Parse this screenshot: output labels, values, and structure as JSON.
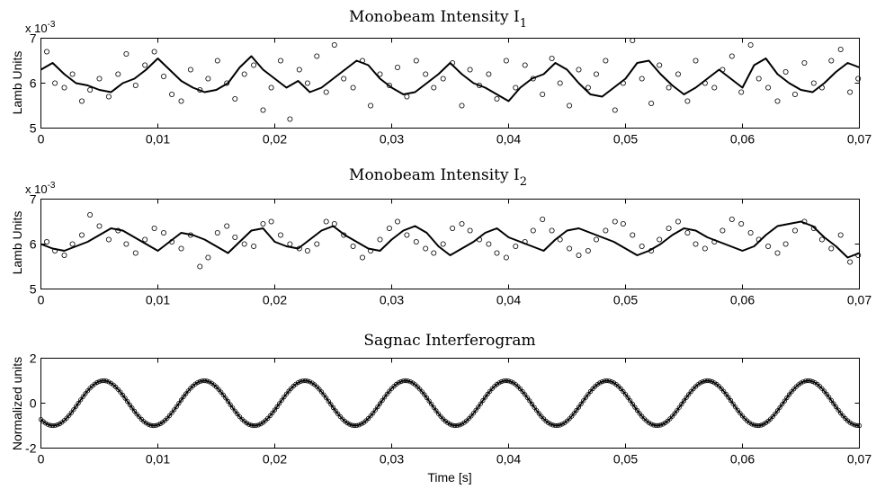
{
  "chart_data": [
    {
      "type": "scatter",
      "title_main": "Monobeam Intensity I",
      "title_sub": "1",
      "xlabel": "",
      "ylabel": "Lamb Units",
      "exponent_base": "x 10",
      "exponent_power": "-3",
      "xlim": [
        0,
        0.07
      ],
      "ylim": [
        5,
        7
      ],
      "x_ticks": [
        0,
        0.01,
        0.02,
        0.03,
        0.04,
        0.05,
        0.06,
        0.07
      ],
      "x_tick_labels": [
        "0",
        "0,01",
        "0,02",
        "0,03",
        "0,04",
        "0,05",
        "0,06",
        "0,07"
      ],
      "y_ticks": [
        5,
        6,
        7
      ],
      "y_tick_labels": [
        "5",
        "6",
        "7"
      ],
      "series": [
        {
          "style": "line",
          "x": [
            0,
            0.001,
            0.002,
            0.003,
            0.004,
            0.005,
            0.006,
            0.007,
            0.008,
            0.009,
            0.01,
            0.011,
            0.012,
            0.013,
            0.014,
            0.015,
            0.016,
            0.017,
            0.018,
            0.019,
            0.02,
            0.021,
            0.022,
            0.023,
            0.024,
            0.025,
            0.026,
            0.027,
            0.028,
            0.029,
            0.03,
            0.031,
            0.032,
            0.033,
            0.034,
            0.035,
            0.036,
            0.037,
            0.038,
            0.039,
            0.04,
            0.041,
            0.042,
            0.043,
            0.044,
            0.045,
            0.046,
            0.047,
            0.048,
            0.049,
            0.05,
            0.051,
            0.052,
            0.053,
            0.054,
            0.055,
            0.056,
            0.057,
            0.058,
            0.059,
            0.06,
            0.061,
            0.062,
            0.063,
            0.064,
            0.065,
            0.066,
            0.067,
            0.068,
            0.069,
            0.07
          ],
          "values": [
            6.3,
            6.45,
            6.2,
            6.0,
            5.95,
            5.85,
            5.8,
            6.0,
            6.1,
            6.3,
            6.55,
            6.3,
            6.05,
            5.9,
            5.8,
            5.85,
            6.0,
            6.35,
            6.6,
            6.3,
            6.1,
            5.9,
            6.05,
            5.8,
            5.9,
            6.1,
            6.3,
            6.5,
            6.4,
            6.1,
            5.9,
            5.75,
            5.8,
            6.0,
            6.2,
            6.45,
            6.2,
            6.0,
            5.9,
            5.75,
            5.6,
            5.9,
            6.1,
            6.2,
            6.45,
            6.3,
            6.0,
            5.75,
            5.7,
            5.9,
            6.1,
            6.45,
            6.5,
            6.2,
            5.95,
            5.75,
            5.9,
            6.1,
            6.3,
            6.1,
            5.9,
            6.4,
            6.55,
            6.2,
            6.0,
            5.85,
            5.8,
            6.0,
            6.25,
            6.45,
            6.35
          ]
        },
        {
          "style": "markers",
          "x": [
            0.0005,
            0.0012,
            0.002,
            0.0027,
            0.0035,
            0.0042,
            0.005,
            0.0058,
            0.0066,
            0.0073,
            0.0081,
            0.0089,
            0.0097,
            0.0105,
            0.0112,
            0.012,
            0.0128,
            0.0136,
            0.0143,
            0.0151,
            0.0159,
            0.0166,
            0.0174,
            0.0182,
            0.019,
            0.0197,
            0.0205,
            0.0213,
            0.0221,
            0.0228,
            0.0236,
            0.0244,
            0.0251,
            0.0259,
            0.0267,
            0.0275,
            0.0282,
            0.029,
            0.0298,
            0.0305,
            0.0313,
            0.0321,
            0.0329,
            0.0336,
            0.0344,
            0.0352,
            0.036,
            0.0367,
            0.0375,
            0.0383,
            0.039,
            0.0398,
            0.0406,
            0.0414,
            0.0421,
            0.0429,
            0.0437,
            0.0444,
            0.0452,
            0.046,
            0.0468,
            0.0475,
            0.0483,
            0.0491,
            0.0498,
            0.0506,
            0.0514,
            0.0522,
            0.0529,
            0.0537,
            0.0545,
            0.0553,
            0.056,
            0.0568,
            0.0576,
            0.0583,
            0.0591,
            0.0599,
            0.0607,
            0.0614,
            0.0622,
            0.063,
            0.0637,
            0.0645,
            0.0653,
            0.0661,
            0.0668,
            0.0676,
            0.0684,
            0.0692,
            0.0699
          ],
          "values": [
            6.7,
            6.0,
            5.9,
            6.2,
            5.6,
            5.85,
            6.1,
            5.7,
            6.2,
            6.65,
            5.95,
            6.4,
            6.7,
            6.15,
            5.75,
            5.6,
            6.3,
            5.85,
            6.1,
            6.5,
            6.0,
            5.65,
            6.2,
            6.4,
            5.4,
            5.9,
            6.5,
            5.2,
            6.3,
            6.0,
            6.6,
            5.8,
            6.85,
            6.1,
            5.9,
            6.5,
            5.5,
            6.2,
            5.95,
            6.35,
            5.7,
            6.5,
            6.2,
            5.9,
            6.1,
            6.45,
            5.5,
            6.3,
            5.95,
            6.2,
            5.65,
            6.5,
            5.9,
            6.4,
            6.1,
            5.75,
            6.55,
            6.0,
            5.5,
            6.3,
            5.9,
            6.2,
            6.5,
            5.4,
            6.0,
            6.95,
            6.1,
            5.55,
            6.4,
            5.9,
            6.2,
            5.6,
            6.5,
            6.0,
            5.9,
            6.3,
            6.6,
            5.8,
            6.85,
            6.1,
            5.9,
            5.6,
            6.25,
            5.75,
            6.45,
            6.0,
            5.9,
            6.5,
            6.75,
            5.8,
            6.1
          ]
        }
      ]
    },
    {
      "type": "scatter",
      "title_main": "Monobeam Intensity I",
      "title_sub": "2",
      "xlabel": "",
      "ylabel": "Lamb Units",
      "exponent_base": "x 10",
      "exponent_power": "-3",
      "xlim": [
        0,
        0.07
      ],
      "ylim": [
        5,
        7
      ],
      "x_ticks": [
        0,
        0.01,
        0.02,
        0.03,
        0.04,
        0.05,
        0.06,
        0.07
      ],
      "x_tick_labels": [
        "0",
        "0,01",
        "0,02",
        "0,03",
        "0,04",
        "0,05",
        "0,06",
        "0,07"
      ],
      "y_ticks": [
        5,
        6,
        7
      ],
      "y_tick_labels": [
        "5",
        "6",
        "7"
      ],
      "series": [
        {
          "style": "line",
          "x": [
            0,
            0.001,
            0.002,
            0.003,
            0.004,
            0.005,
            0.006,
            0.007,
            0.008,
            0.009,
            0.01,
            0.011,
            0.012,
            0.013,
            0.014,
            0.015,
            0.016,
            0.017,
            0.018,
            0.019,
            0.02,
            0.021,
            0.022,
            0.023,
            0.024,
            0.025,
            0.026,
            0.027,
            0.028,
            0.029,
            0.03,
            0.031,
            0.032,
            0.033,
            0.034,
            0.035,
            0.036,
            0.037,
            0.038,
            0.039,
            0.04,
            0.041,
            0.042,
            0.043,
            0.044,
            0.045,
            0.046,
            0.047,
            0.048,
            0.049,
            0.05,
            0.051,
            0.052,
            0.053,
            0.054,
            0.055,
            0.056,
            0.057,
            0.058,
            0.059,
            0.06,
            0.061,
            0.062,
            0.063,
            0.064,
            0.065,
            0.066,
            0.067,
            0.068,
            0.069,
            0.07
          ],
          "values": [
            6.0,
            5.9,
            5.85,
            5.95,
            6.05,
            6.2,
            6.35,
            6.3,
            6.15,
            6.0,
            5.85,
            6.05,
            6.25,
            6.2,
            6.1,
            5.95,
            5.8,
            6.05,
            6.3,
            6.35,
            6.05,
            5.95,
            5.9,
            6.1,
            6.3,
            6.4,
            6.2,
            6.05,
            5.9,
            5.85,
            6.1,
            6.3,
            6.4,
            6.25,
            5.95,
            5.75,
            5.9,
            6.05,
            6.25,
            6.35,
            6.15,
            6.05,
            5.95,
            5.85,
            6.1,
            6.3,
            6.35,
            6.25,
            6.15,
            6.05,
            5.9,
            5.75,
            5.85,
            6.0,
            6.2,
            6.35,
            6.3,
            6.15,
            6.05,
            5.95,
            5.85,
            5.95,
            6.2,
            6.4,
            6.45,
            6.5,
            6.4,
            6.15,
            5.95,
            5.7,
            5.8
          ]
        },
        {
          "style": "markers",
          "x": [
            0.0005,
            0.0012,
            0.002,
            0.0027,
            0.0035,
            0.0042,
            0.005,
            0.0058,
            0.0066,
            0.0073,
            0.0081,
            0.0089,
            0.0097,
            0.0105,
            0.0112,
            0.012,
            0.0128,
            0.0136,
            0.0143,
            0.0151,
            0.0159,
            0.0166,
            0.0174,
            0.0182,
            0.019,
            0.0197,
            0.0205,
            0.0213,
            0.0221,
            0.0228,
            0.0236,
            0.0244,
            0.0251,
            0.0259,
            0.0267,
            0.0275,
            0.0282,
            0.029,
            0.0298,
            0.0305,
            0.0313,
            0.0321,
            0.0329,
            0.0336,
            0.0344,
            0.0352,
            0.036,
            0.0367,
            0.0375,
            0.0383,
            0.039,
            0.0398,
            0.0406,
            0.0414,
            0.0421,
            0.0429,
            0.0437,
            0.0444,
            0.0452,
            0.046,
            0.0468,
            0.0475,
            0.0483,
            0.0491,
            0.0498,
            0.0506,
            0.0514,
            0.0522,
            0.0529,
            0.0537,
            0.0545,
            0.0553,
            0.056,
            0.0568,
            0.0576,
            0.0583,
            0.0591,
            0.0599,
            0.0607,
            0.0614,
            0.0622,
            0.063,
            0.0637,
            0.0645,
            0.0653,
            0.0661,
            0.0668,
            0.0676,
            0.0684,
            0.0692,
            0.0699
          ],
          "values": [
            6.05,
            5.85,
            5.75,
            6.0,
            6.2,
            6.65,
            6.4,
            6.1,
            6.3,
            6.0,
            5.8,
            6.1,
            6.35,
            6.25,
            6.05,
            5.9,
            6.2,
            5.5,
            5.7,
            6.25,
            6.4,
            6.15,
            6.0,
            5.95,
            6.45,
            6.5,
            6.2,
            6.0,
            5.9,
            5.85,
            6.0,
            6.5,
            6.45,
            6.2,
            5.95,
            5.7,
            5.85,
            6.1,
            6.35,
            6.5,
            6.2,
            6.05,
            5.9,
            5.8,
            6.0,
            6.35,
            6.45,
            6.3,
            6.1,
            6.0,
            5.8,
            5.7,
            5.95,
            6.05,
            6.3,
            6.55,
            6.3,
            6.1,
            5.9,
            5.75,
            5.85,
            6.1,
            6.3,
            6.5,
            6.45,
            6.2,
            5.95,
            5.85,
            6.1,
            6.35,
            6.5,
            6.25,
            6.0,
            5.9,
            6.05,
            6.3,
            6.55,
            6.45,
            6.25,
            6.1,
            5.95,
            5.8,
            6.0,
            6.3,
            6.5,
            6.35,
            6.1,
            5.9,
            6.2,
            5.6,
            5.75
          ]
        }
      ]
    },
    {
      "type": "line",
      "title": "Sagnac Interferogram",
      "xlabel": "Time [s]",
      "ylabel": "Normalized units",
      "xlim": [
        0,
        0.07
      ],
      "ylim": [
        -2,
        2
      ],
      "x_ticks": [
        0,
        0.01,
        0.02,
        0.03,
        0.04,
        0.05,
        0.06,
        0.07
      ],
      "x_tick_labels": [
        "0",
        "0,01",
        "0,02",
        "0,03",
        "0,04",
        "0,05",
        "0,06",
        "0,07"
      ],
      "y_ticks": [
        -2,
        0,
        2
      ],
      "y_tick_labels": [
        "-2",
        "0",
        "2"
      ],
      "series": [
        {
          "style": "sine",
          "amplitude": 1,
          "period": 0.00861,
          "peak_first": 0.00535,
          "x_range": [
            0,
            0.07
          ],
          "markers": true
        }
      ]
    }
  ]
}
